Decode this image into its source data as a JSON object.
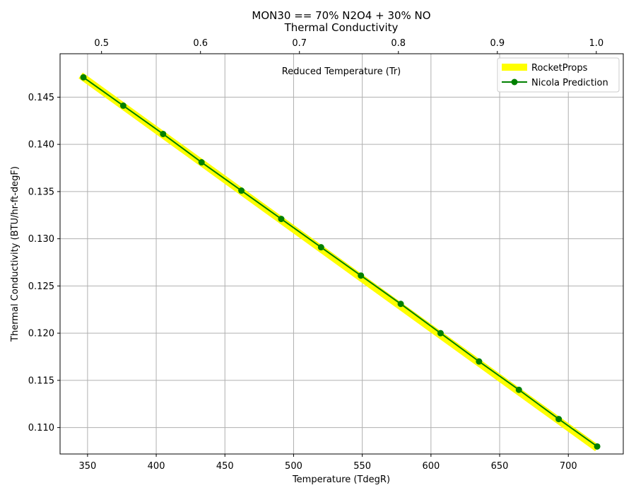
{
  "chart_data": {
    "type": "line",
    "title": "MON30 == 70% N2O4 + 30% NO",
    "subtitle": "Thermal Conductivity",
    "xlabel": "Temperature (TdegR)",
    "ylabel": "Thermal Conductivity (BTU/hr-ft-degF)",
    "top_xlabel": "Reduced Temperature (Tr)",
    "xlim": [
      330,
      740
    ],
    "ylim": [
      0.1072,
      0.1496
    ],
    "x_ticks": [
      350,
      400,
      450,
      500,
      550,
      600,
      650,
      700
    ],
    "y_ticks": [
      0.11,
      0.115,
      0.12,
      0.125,
      0.13,
      0.135,
      0.14,
      0.145
    ],
    "y_tick_labels": [
      "0.110",
      "0.115",
      "0.120",
      "0.125",
      "0.130",
      "0.135",
      "0.140",
      "0.145"
    ],
    "top_x_ticks": [
      0.5,
      0.6,
      0.7,
      0.8,
      0.9,
      1.0
    ],
    "top_x_tick_labels": [
      "0.5",
      "0.6",
      "0.7",
      "0.8",
      "0.9",
      "1.0"
    ],
    "tr_per_degR": 0.0013882,
    "grid": true,
    "legend_position": "top-right",
    "series": [
      {
        "name": "RocketProps",
        "color": "#ffff00",
        "style": "thick-line",
        "x": [
          345,
          721
        ],
        "y": [
          0.1473,
          0.1078
        ]
      },
      {
        "name": "Nicola Prediction",
        "color": "#008000",
        "style": "line-with-markers",
        "x": [
          347,
          376,
          405,
          433,
          462,
          491,
          520,
          549,
          578,
          607,
          635,
          664,
          693,
          721
        ],
        "y": [
          0.1471,
          0.1441,
          0.1411,
          0.1381,
          0.1351,
          0.1321,
          0.1291,
          0.1261,
          0.1231,
          0.12,
          0.117,
          0.114,
          0.1109,
          0.108
        ]
      }
    ]
  }
}
